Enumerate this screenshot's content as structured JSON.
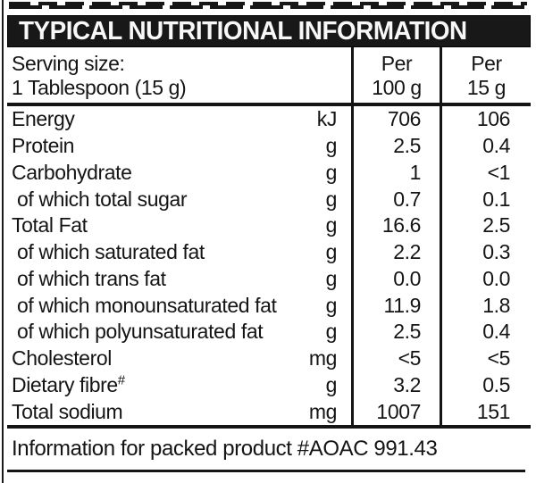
{
  "header": {
    "title": "TYPICAL NUTRITIONAL INFORMATION"
  },
  "serving": {
    "label_line1": "Serving size:",
    "label_line2": "1 Tablespoon (15 g)",
    "col100_line1": "Per",
    "col100_line2": "100 g",
    "col15_line1": "Per",
    "col15_line2": "15 g"
  },
  "rows": [
    {
      "label": "Energy",
      "unit": "kJ",
      "per100": "706",
      "per15": "106"
    },
    {
      "label": "Protein",
      "unit": "g",
      "per100": "2.5",
      "per15": "0.4"
    },
    {
      "label": "Carbohydrate",
      "unit": "g",
      "per100": "1",
      "per15": "<1"
    },
    {
      "label": "of which total sugar",
      "unit": "g",
      "per100": "0.7",
      "per15": "0.1"
    },
    {
      "label": "Total Fat",
      "unit": "g",
      "per100": "16.6",
      "per15": "2.5"
    },
    {
      "label": "of which saturated fat",
      "unit": "g",
      "per100": "2.2",
      "per15": "0.3"
    },
    {
      "label": "of which trans fat",
      "unit": "g",
      "per100": "0.0",
      "per15": "0.0"
    },
    {
      "label": "of which monounsaturated fat",
      "unit": "g",
      "per100": "11.9",
      "per15": "1.8"
    },
    {
      "label": "of which polyunsaturated fat",
      "unit": "g",
      "per100": "2.5",
      "per15": "0.4"
    },
    {
      "label": "Cholesterol",
      "unit": "mg",
      "per100": "<5",
      "per15": "<5"
    },
    {
      "label": "Dietary fibre",
      "sup": "#",
      "unit": "g",
      "per100": "3.2",
      "per15": "0.5"
    },
    {
      "label": "Total sodium",
      "unit": "mg",
      "per100": "1007",
      "per15": "151"
    }
  ],
  "footer": {
    "text": "Information for packed product #AOAC 991.43"
  },
  "colors": {
    "ink": "#141414",
    "paper": "#ffffff",
    "bar_bg": "#181818",
    "bar_text": "#f8f8f8"
  }
}
